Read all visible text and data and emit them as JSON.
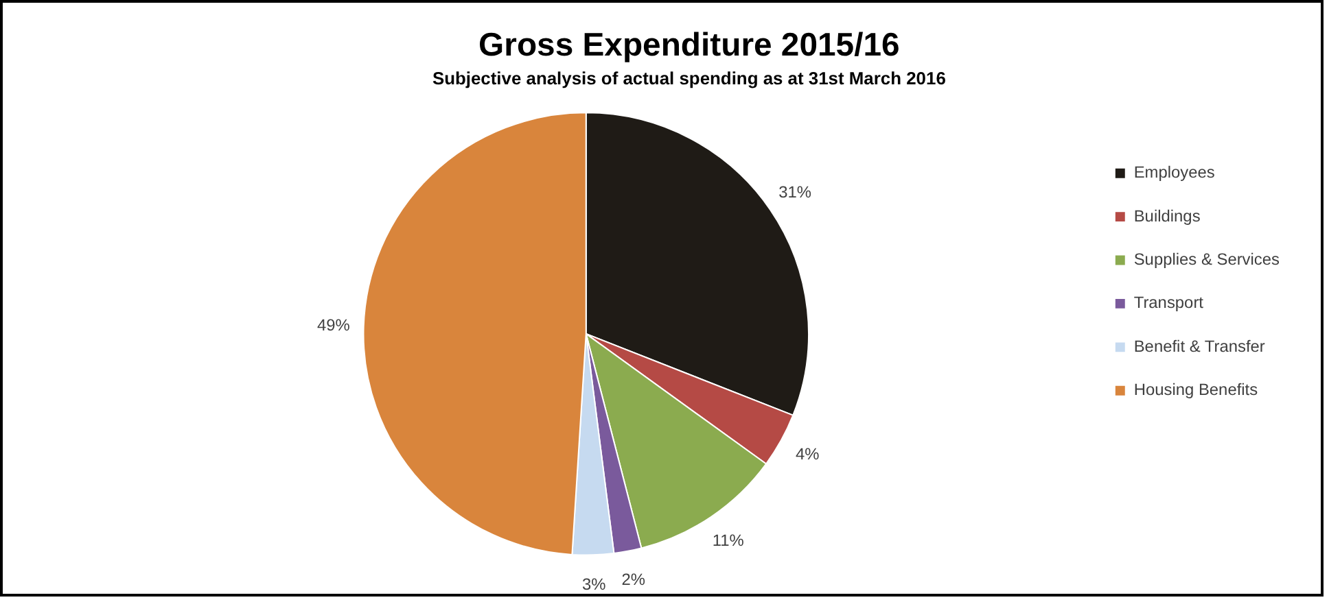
{
  "chart_data": {
    "type": "pie",
    "title": "Gross Expenditure 2015/16",
    "subtitle": "Subjective analysis of actual spending as at 31st March 2016",
    "categories": [
      "Employees",
      "Buildings",
      "Supplies & Services",
      "Transport",
      "Benefit & Transfer",
      "Housing Benefits"
    ],
    "values": [
      31,
      4,
      11,
      2,
      3,
      49
    ],
    "colors": [
      "#1f1b16",
      "#b54a45",
      "#8bab4f",
      "#7a5a9c",
      "#c6daf0",
      "#d9853c"
    ],
    "value_labels": [
      "31%",
      "4%",
      "11%",
      "2%",
      "3%",
      "49%"
    ],
    "legend": "right"
  }
}
